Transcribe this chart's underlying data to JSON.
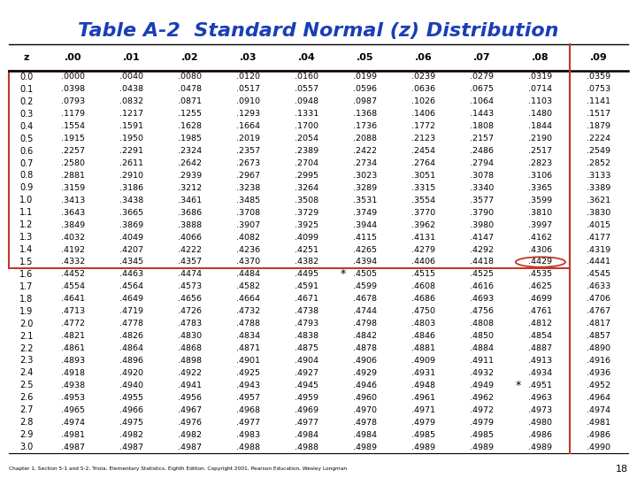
{
  "title": "Table A-2  Standard Normal (z) Distribution",
  "title_color": "#1a3fb5",
  "background_color": "#ffffff",
  "header_row": [
    "z",
    ".00",
    ".01",
    ".02",
    ".03",
    ".04",
    ".05",
    ".06",
    ".07",
    ".08",
    ".09"
  ],
  "z_labels": [
    "0.0",
    "0.1",
    "0.2",
    "0.3",
    "0.4",
    "0.5",
    "0.6",
    "0.7",
    "0.8",
    "0.9",
    "1.0",
    "1.1",
    "1.2",
    "1.3",
    "1.4",
    "1.5",
    "1.6",
    "1.7",
    "1.8",
    "1.9",
    "2.0",
    "2.1",
    "2.2",
    "2.3",
    "2.4",
    "2.5",
    "2.6",
    "2.7",
    "2.8",
    "2.9",
    "3.0"
  ],
  "table_data": [
    [
      ".0000",
      ".0040",
      ".0080",
      ".0120",
      ".0160",
      ".0199",
      ".0239",
      ".0279",
      ".0319",
      ".0359"
    ],
    [
      ".0398",
      ".0438",
      ".0478",
      ".0517",
      ".0557",
      ".0596",
      ".0636",
      ".0675",
      ".0714",
      ".0753"
    ],
    [
      ".0793",
      ".0832",
      ".0871",
      ".0910",
      ".0948",
      ".0987",
      ".1026",
      ".1064",
      ".1103",
      ".1141"
    ],
    [
      ".1179",
      ".1217",
      ".1255",
      ".1293",
      ".1331",
      ".1368",
      ".1406",
      ".1443",
      ".1480",
      ".1517"
    ],
    [
      ".1554",
      ".1591",
      ".1628",
      ".1664",
      ".1700",
      ".1736",
      ".1772",
      ".1808",
      ".1844",
      ".1879"
    ],
    [
      ".1915",
      ".1950",
      ".1985",
      ".2019",
      ".2054",
      ".2088",
      ".2123",
      ".2157",
      ".2190",
      ".2224"
    ],
    [
      ".2257",
      ".2291",
      ".2324",
      ".2357",
      ".2389",
      ".2422",
      ".2454",
      ".2486",
      ".2517",
      ".2549"
    ],
    [
      ".2580",
      ".2611",
      ".2642",
      ".2673",
      ".2704",
      ".2734",
      ".2764",
      ".2794",
      ".2823",
      ".2852"
    ],
    [
      ".2881",
      ".2910",
      ".2939",
      ".2967",
      ".2995",
      ".3023",
      ".3051",
      ".3078",
      ".3106",
      ".3133"
    ],
    [
      ".3159",
      ".3186",
      ".3212",
      ".3238",
      ".3264",
      ".3289",
      ".3315",
      ".3340",
      ".3365",
      ".3389"
    ],
    [
      ".3413",
      ".3438",
      ".3461",
      ".3485",
      ".3508",
      ".3531",
      ".3554",
      ".3577",
      ".3599",
      ".3621"
    ],
    [
      ".3643",
      ".3665",
      ".3686",
      ".3708",
      ".3729",
      ".3749",
      ".3770",
      ".3790",
      ".3810",
      ".3830"
    ],
    [
      ".3849",
      ".3869",
      ".3888",
      ".3907",
      ".3925",
      ".3944",
      ".3962",
      ".3980",
      ".3997",
      ".4015"
    ],
    [
      ".4032",
      ".4049",
      ".4066",
      ".4082",
      ".4099",
      ".4115",
      ".4131",
      ".4147",
      ".4162",
      ".4177"
    ],
    [
      ".4192",
      ".4207",
      ".4222",
      ".4236",
      ".4251",
      ".4265",
      ".4279",
      ".4292",
      ".4306",
      ".4319"
    ],
    [
      ".4332",
      ".4345",
      ".4357",
      ".4370",
      ".4382",
      ".4394",
      ".4406",
      ".4418",
      ".4429",
      ".4441"
    ],
    [
      ".4452",
      ".4463",
      ".4474",
      ".4484",
      ".4495",
      ".4505",
      ".4515",
      ".4525",
      ".4535",
      ".4545"
    ],
    [
      ".4554",
      ".4564",
      ".4573",
      ".4582",
      ".4591",
      ".4599",
      ".4608",
      ".4616",
      ".4625",
      ".4633"
    ],
    [
      ".4641",
      ".4649",
      ".4656",
      ".4664",
      ".4671",
      ".4678",
      ".4686",
      ".4693",
      ".4699",
      ".4706"
    ],
    [
      ".4713",
      ".4719",
      ".4726",
      ".4732",
      ".4738",
      ".4744",
      ".4750",
      ".4756",
      ".4761",
      ".4767"
    ],
    [
      ".4772",
      ".4778",
      ".4783",
      ".4788",
      ".4793",
      ".4798",
      ".4803",
      ".4808",
      ".4812",
      ".4817"
    ],
    [
      ".4821",
      ".4826",
      ".4830",
      ".4834",
      ".4838",
      ".4842",
      ".4846",
      ".4850",
      ".4854",
      ".4857"
    ],
    [
      ".4861",
      ".4864",
      ".4868",
      ".4871",
      ".4875",
      ".4878",
      ".4881",
      ".4884",
      ".4887",
      ".4890"
    ],
    [
      ".4893",
      ".4896",
      ".4898",
      ".4901",
      ".4904",
      ".4906",
      ".4909",
      ".4911",
      ".4913",
      ".4916"
    ],
    [
      ".4918",
      ".4920",
      ".4922",
      ".4925",
      ".4927",
      ".4929",
      ".4931",
      ".4932",
      ".4934",
      ".4936"
    ],
    [
      ".4938",
      ".4940",
      ".4941",
      ".4943",
      ".4945",
      ".4946",
      ".4948",
      ".4949",
      ".4951",
      ".4952"
    ],
    [
      ".4953",
      ".4955",
      ".4956",
      ".4957",
      ".4959",
      ".4960",
      ".4961",
      ".4962",
      ".4963",
      ".4964"
    ],
    [
      ".4965",
      ".4966",
      ".4967",
      ".4968",
      ".4969",
      ".4970",
      ".4971",
      ".4972",
      ".4973",
      ".4974"
    ],
    [
      ".4974",
      ".4975",
      ".4976",
      ".4977",
      ".4977",
      ".4978",
      ".4979",
      ".4979",
      ".4980",
      ".4981"
    ],
    [
      ".4981",
      ".4982",
      ".4982",
      ".4983",
      ".4984",
      ".4984",
      ".4985",
      ".4985",
      ".4986",
      ".4986"
    ],
    [
      ".4987",
      ".4987",
      ".4987",
      ".4988",
      ".4988",
      ".4989",
      ".4989",
      ".4989",
      ".4989",
      ".4990"
    ]
  ],
  "footer_text": "Chapter 1, Section 5-1 and 5-2, Triola, Elementary Statistics, Eighth Edition. Copyright 2001. Pearson Education, Wesley Longman",
  "page_number": "18",
  "red_color": "#c0392b",
  "star_row": 16,
  "star_col": 5,
  "star2_row": 25,
  "star2_col": 8,
  "circle_row": 15,
  "circle_col": 8
}
